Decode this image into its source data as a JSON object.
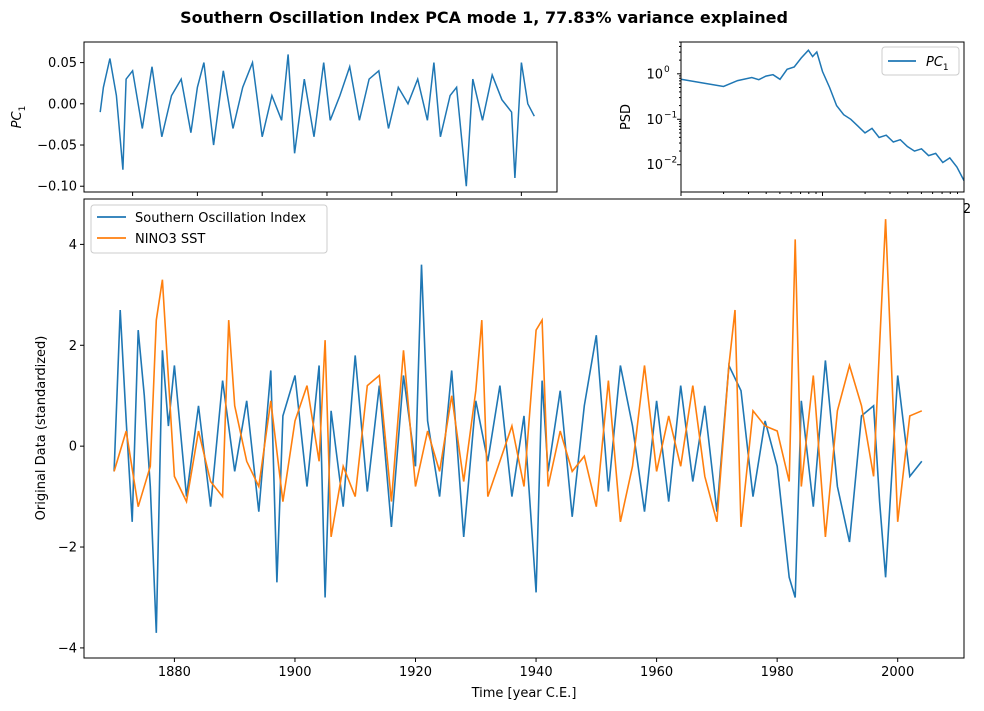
{
  "figure": {
    "title": "Southern Oscillation Index PCA mode 1, 77.83% variance explained"
  },
  "chart_data": [
    {
      "type": "line",
      "panel": "pc-timeseries",
      "ylabel": "PC",
      "ylabel_sub": "1",
      "xlim": [
        1865,
        2011
      ],
      "ylim": [
        -0.107,
        0.075
      ],
      "yticks": [
        0.05,
        0.0,
        -0.05,
        -0.1
      ],
      "ytick_labels": [
        "0.05",
        "0.00",
        "−0.05",
        "−0.10"
      ],
      "xticks": [
        1880,
        1900,
        1920,
        1940,
        1960,
        1980,
        2000
      ],
      "series": [
        {
          "color": "#1f77b4",
          "x": [
            1870,
            1871,
            1873,
            1875,
            1877,
            1878,
            1880,
            1883,
            1886,
            1889,
            1892,
            1895,
            1898,
            1900,
            1902,
            1905,
            1908,
            1911,
            1914,
            1917,
            1920,
            1923,
            1926,
            1928,
            1930,
            1933,
            1936,
            1939,
            1941,
            1944,
            1947,
            1950,
            1953,
            1956,
            1959,
            1962,
            1965,
            1968,
            1971,
            1973,
            1975,
            1978,
            1980,
            1983,
            1985,
            1988,
            1991,
            1994,
            1997,
            1998,
            2000,
            2002,
            2004
          ],
          "y": [
            -0.01,
            0.02,
            0.055,
            0.01,
            -0.08,
            0.03,
            0.04,
            -0.03,
            0.045,
            -0.04,
            0.01,
            0.03,
            -0.035,
            0.02,
            0.05,
            -0.05,
            0.04,
            -0.03,
            0.02,
            0.05,
            -0.04,
            0.01,
            -0.02,
            0.06,
            -0.06,
            0.03,
            -0.04,
            0.05,
            -0.02,
            0.01,
            0.045,
            -0.02,
            0.03,
            0.04,
            -0.03,
            0.02,
            0.0,
            0.03,
            -0.02,
            0.05,
            -0.04,
            0.01,
            0.02,
            -0.1,
            0.03,
            -0.02,
            0.035,
            0.005,
            -0.01,
            -0.09,
            0.05,
            0.0,
            -0.015
          ]
        }
      ]
    },
    {
      "type": "line",
      "panel": "psd",
      "ylabel": "PSD",
      "yscale": "log",
      "xscale": "log",
      "ylim_log10": [
        -2.6,
        0.7
      ],
      "yticks_log10": [
        0,
        -1,
        -2
      ],
      "visible_xtick_fragment": "2",
      "series": [
        {
          "name": "PC",
          "name_sub": "1",
          "color": "#1f77b4",
          "logx": [
            0.0,
            0.15,
            0.3,
            0.4,
            0.5,
            0.55,
            0.6,
            0.65,
            0.7,
            0.75,
            0.8,
            0.85,
            0.9,
            0.93,
            0.96,
            1.0,
            1.05,
            1.1,
            1.15,
            1.2,
            1.25,
            1.3,
            1.35,
            1.4,
            1.45,
            1.5,
            1.55,
            1.6,
            1.65,
            1.7,
            1.75,
            1.8,
            1.85,
            1.9,
            1.95,
            2.0
          ],
          "logy": [
            -0.12,
            -0.2,
            -0.28,
            -0.15,
            -0.08,
            -0.13,
            -0.05,
            -0.02,
            -0.12,
            0.1,
            0.15,
            0.35,
            0.52,
            0.38,
            0.48,
            0.05,
            -0.3,
            -0.7,
            -0.9,
            -1.0,
            -1.15,
            -1.3,
            -1.2,
            -1.4,
            -1.35,
            -1.5,
            -1.45,
            -1.6,
            -1.7,
            -1.65,
            -1.8,
            -1.75,
            -1.95,
            -1.85,
            -2.05,
            -2.35
          ]
        }
      ]
    },
    {
      "type": "line",
      "panel": "original-data",
      "xlabel": "Time [year C.E.]",
      "ylabel": "Original Data (standardized)",
      "xlim": [
        1865,
        2011
      ],
      "ylim": [
        -4.2,
        4.9
      ],
      "xticks": [
        1880,
        1900,
        1920,
        1940,
        1960,
        1980,
        2000
      ],
      "yticks": [
        4,
        2,
        0,
        -2,
        -4
      ],
      "ytick_labels": [
        "4",
        "2",
        "0",
        "−2",
        "−4"
      ],
      "legend": "top-left",
      "series": [
        {
          "name": "Southern Oscillation Index",
          "color": "#1f77b4",
          "x": [
            1870,
            1871,
            1872,
            1873,
            1874,
            1875,
            1876,
            1877,
            1878,
            1879,
            1880,
            1882,
            1884,
            1886,
            1888,
            1890,
            1892,
            1894,
            1896,
            1897,
            1898,
            1900,
            1902,
            1904,
            1905,
            1906,
            1908,
            1910,
            1912,
            1914,
            1916,
            1918,
            1920,
            1921,
            1922,
            1924,
            1926,
            1928,
            1930,
            1932,
            1934,
            1936,
            1938,
            1940,
            1941,
            1942,
            1944,
            1946,
            1948,
            1950,
            1952,
            1954,
            1956,
            1958,
            1960,
            1962,
            1964,
            1966,
            1968,
            1970,
            1972,
            1974,
            1976,
            1978,
            1980,
            1982,
            1983,
            1984,
            1986,
            1988,
            1990,
            1992,
            1994,
            1996,
            1997,
            1998,
            2000,
            2002,
            2004
          ],
          "y": [
            -0.5,
            2.7,
            0.5,
            -1.5,
            2.3,
            1.0,
            -0.8,
            -3.7,
            1.9,
            0.4,
            1.6,
            -1.0,
            0.8,
            -1.2,
            1.3,
            -0.5,
            0.9,
            -1.3,
            1.5,
            -2.7,
            0.6,
            1.4,
            -0.8,
            1.6,
            -3.0,
            0.7,
            -1.2,
            1.8,
            -0.9,
            1.2,
            -1.6,
            1.4,
            -0.4,
            3.6,
            0.5,
            -1.0,
            1.5,
            -1.8,
            0.9,
            -0.3,
            1.2,
            -1.0,
            0.6,
            -2.9,
            1.3,
            -0.5,
            1.1,
            -1.4,
            0.8,
            2.2,
            -0.9,
            1.6,
            0.4,
            -1.3,
            0.9,
            -1.1,
            1.2,
            -0.7,
            0.8,
            -1.3,
            1.6,
            1.1,
            -1.0,
            0.5,
            -0.4,
            -2.6,
            -3.0,
            0.9,
            -1.2,
            1.7,
            -0.8,
            -1.9,
            0.6,
            0.8,
            -1.1,
            -2.6,
            1.4,
            -0.6,
            -0.3
          ]
        },
        {
          "name": "NINO3 SST",
          "color": "#ff7f0e",
          "x": [
            1870,
            1872,
            1874,
            1876,
            1877,
            1878,
            1880,
            1882,
            1884,
            1886,
            1888,
            1889,
            1890,
            1892,
            1894,
            1896,
            1898,
            1900,
            1902,
            1904,
            1905,
            1906,
            1908,
            1910,
            1912,
            1914,
            1916,
            1918,
            1920,
            1922,
            1924,
            1926,
            1928,
            1930,
            1931,
            1932,
            1934,
            1936,
            1938,
            1940,
            1941,
            1942,
            1944,
            1946,
            1948,
            1950,
            1952,
            1954,
            1956,
            1958,
            1960,
            1962,
            1964,
            1966,
            1968,
            1970,
            1972,
            1973,
            1974,
            1976,
            1978,
            1980,
            1982,
            1983,
            1984,
            1986,
            1988,
            1990,
            1992,
            1994,
            1996,
            1997,
            1998,
            2000,
            2002,
            2004
          ],
          "y": [
            -0.5,
            0.3,
            -1.2,
            -0.4,
            2.5,
            3.3,
            -0.6,
            -1.1,
            0.3,
            -0.7,
            -1.0,
            2.5,
            0.8,
            -0.3,
            -0.8,
            0.9,
            -1.1,
            0.5,
            1.2,
            -0.3,
            2.1,
            -1.8,
            -0.4,
            -1.0,
            1.2,
            1.4,
            -1.1,
            1.9,
            -0.8,
            0.3,
            -0.5,
            1.0,
            -0.7,
            1.1,
            2.5,
            -1.0,
            -0.3,
            0.4,
            -0.8,
            2.3,
            2.5,
            -0.8,
            0.3,
            -0.5,
            -0.2,
            -1.2,
            1.3,
            -1.5,
            -0.4,
            1.6,
            -0.5,
            0.6,
            -0.4,
            1.2,
            -0.6,
            -1.5,
            1.6,
            2.7,
            -1.6,
            0.7,
            0.4,
            0.3,
            -0.7,
            4.1,
            -0.8,
            1.4,
            -1.8,
            0.7,
            1.6,
            0.8,
            -0.6,
            2.0,
            4.5,
            -1.5,
            0.6,
            0.7
          ]
        }
      ]
    }
  ]
}
